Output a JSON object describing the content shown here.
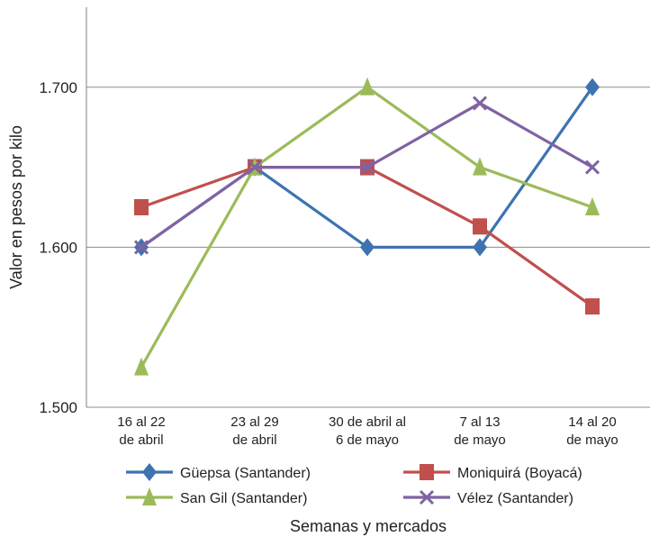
{
  "chart_data": {
    "type": "line",
    "ylabel": "Valor en pesos por kilo",
    "xlabel": "Semanas y mercados",
    "ylim": [
      1500,
      1750
    ],
    "yticks": [
      1500,
      1600,
      1700
    ],
    "ytick_labels": [
      "1.500",
      "1.600",
      "1.700"
    ],
    "grid": "horizontal",
    "legend_position": "bottom",
    "categories": [
      [
        "16 al 22",
        "de abril"
      ],
      [
        "23 al 29",
        "de abril"
      ],
      [
        "30 de abril al",
        "6 de mayo"
      ],
      [
        "7 al 13",
        "de mayo"
      ],
      [
        "14 al 20",
        "de mayo"
      ]
    ],
    "series": [
      {
        "name": "Güepsa (Santander)",
        "color": "#3e73b1",
        "marker": "diamond",
        "values": [
          1600,
          1650,
          1600,
          1600,
          1700
        ]
      },
      {
        "name": "Moniquirá (Boyacá)",
        "color": "#c0504d",
        "marker": "square",
        "values": [
          1625,
          1650,
          1650,
          1613,
          1563
        ]
      },
      {
        "name": "San Gil (Santander)",
        "color": "#9bbb59",
        "marker": "triangle",
        "values": [
          1525,
          1650,
          1700,
          1650,
          1625
        ]
      },
      {
        "name": "Vélez (Santander)",
        "color": "#7f63a3",
        "marker": "x",
        "values": [
          1600,
          1650,
          1650,
          1690,
          1650
        ]
      }
    ]
  }
}
